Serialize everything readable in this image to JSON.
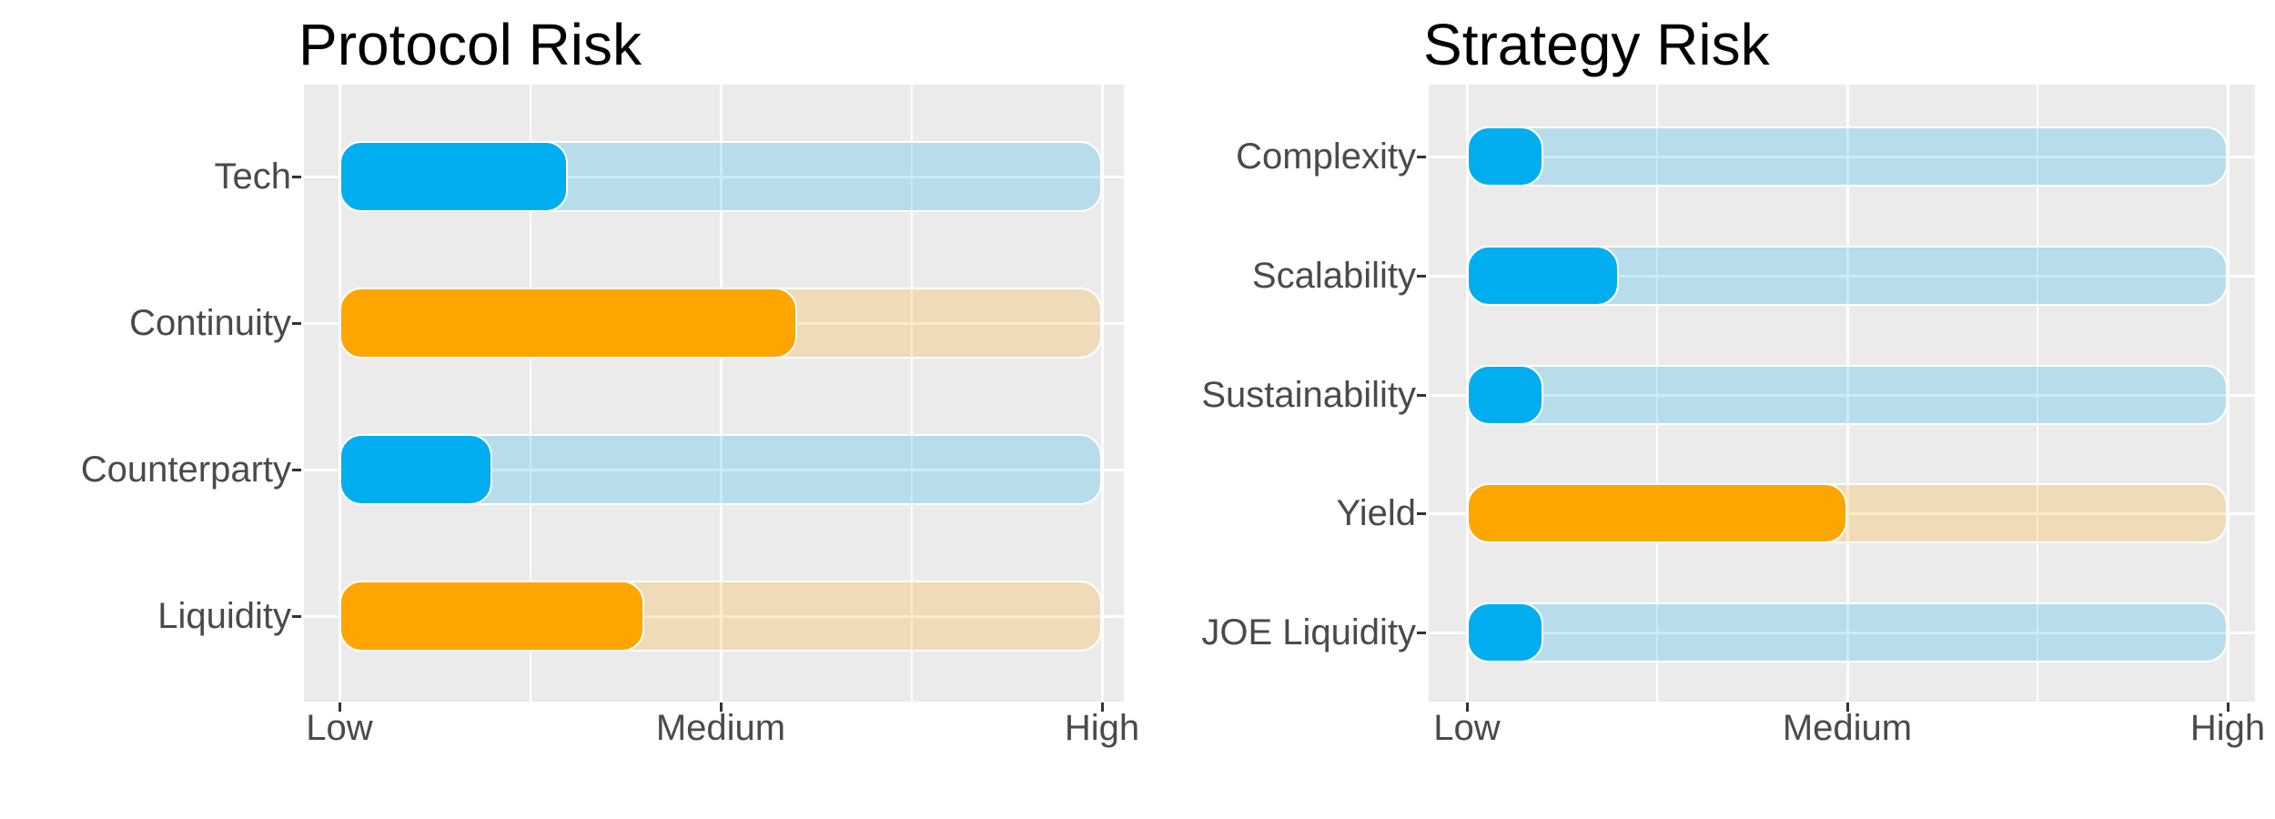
{
  "page": {
    "background": "#FFFFFF"
  },
  "colors": {
    "bar_blue": "#00AEEF",
    "bar_orange": "#FFA500",
    "panel_background": "#EBEBEB",
    "gridline": "#FFFFFF",
    "axis_text": "#4A4A4A",
    "title_text": "#000000",
    "tick_mark": "#333333",
    "track_opacity": 0.22
  },
  "chart_data": [
    {
      "type": "bar",
      "orientation": "horizontal",
      "title": "Protocol Risk",
      "categories": [
        "Tech",
        "Continuity",
        "Counterparty",
        "Liquidity"
      ],
      "values": [
        0.3,
        0.6,
        0.2,
        0.4
      ],
      "bar_colors": [
        "#00AEEF",
        "#FFA500",
        "#00AEEF",
        "#FFA500"
      ],
      "xticks": [
        "Low",
        "Medium",
        "High"
      ],
      "xtick_positions": [
        0,
        0.5,
        1
      ],
      "xlim": [
        0,
        1
      ],
      "grid": "white major verticals at ticks, minors at 0.25/0.75, horizontal line per category",
      "legend": "none",
      "track": "full-width Low-to-High rounded track in same hue at low opacity behind each bar"
    },
    {
      "type": "bar",
      "orientation": "horizontal",
      "title": "Strategy Risk",
      "categories": [
        "Complexity",
        "Scalability",
        "Sustainability",
        "Yield",
        "JOE Liquidity"
      ],
      "values": [
        0.1,
        0.2,
        0.1,
        0.5,
        0.1
      ],
      "bar_colors": [
        "#00AEEF",
        "#00AEEF",
        "#00AEEF",
        "#FFA500",
        "#00AEEF"
      ],
      "xticks": [
        "Low",
        "Medium",
        "High"
      ],
      "xtick_positions": [
        0,
        0.5,
        1
      ],
      "xlim": [
        0,
        1
      ],
      "grid": "white major verticals at ticks, minors at 0.25/0.75, horizontal line per category",
      "legend": "none",
      "track": "full-width Low-to-High rounded track in same hue at low opacity behind each bar"
    }
  ]
}
